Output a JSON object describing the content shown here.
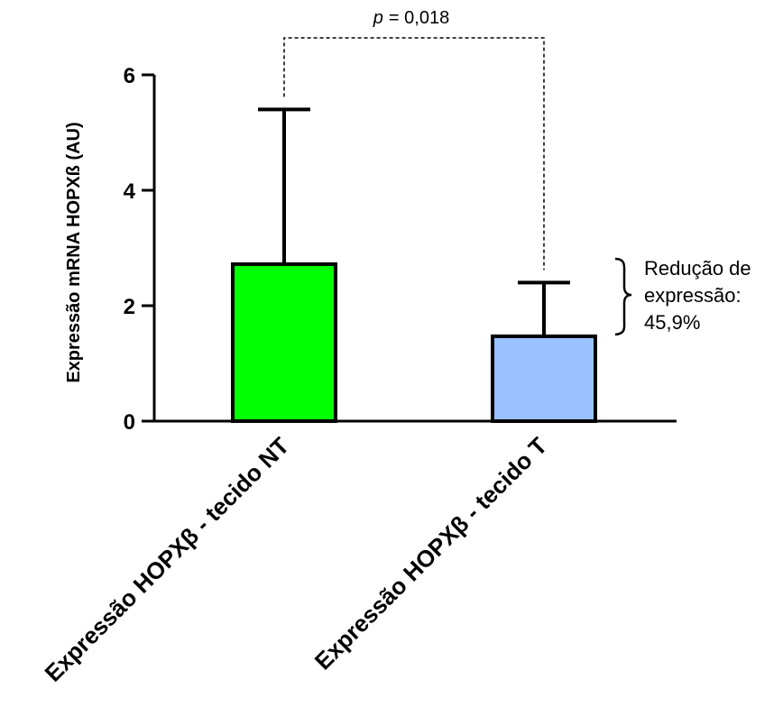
{
  "chart_data": {
    "type": "bar",
    "ylabel": "Expressão mRNA HOPXß (AU)",
    "ylim": [
      0,
      6
    ],
    "yticks": [
      "0",
      "2",
      "4",
      "6"
    ],
    "categories": [
      "Expressão HOPXβ - tecido NT",
      "Expressão HOPXβ - tecido T"
    ],
    "values": [
      2.72,
      1.47
    ],
    "error_upper": [
      5.4,
      2.4
    ],
    "bar_colors": [
      "#00ff00",
      "#99c2ff"
    ],
    "p_label": "p",
    "p_value": "= 0,018",
    "annotation_lines": [
      "Redução de",
      "expressão:",
      "45,9%"
    ]
  }
}
